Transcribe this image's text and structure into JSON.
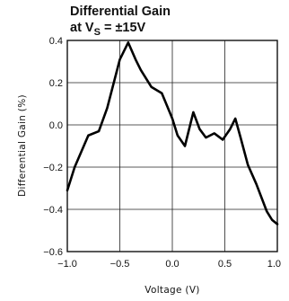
{
  "chart_data": {
    "type": "line",
    "title_line1": "Differential Gain",
    "title_line2_prefix": "at V",
    "title_line2_sub": "S",
    "title_line2_suffix": " = ±15V",
    "xlabel": "Voltage (V)",
    "ylabel": "Differential Gain (%)",
    "xlim": [
      -1.0,
      1.0
    ],
    "ylim": [
      -0.6,
      0.4
    ],
    "xticks": [
      -1.0,
      -0.5,
      0.0,
      0.5,
      1.0
    ],
    "xtick_labels": [
      "−1.0",
      "−0.5",
      "0.0",
      "0.5",
      "1.0"
    ],
    "yticks": [
      0.4,
      0.2,
      0.0,
      -0.2,
      -0.4,
      -0.6
    ],
    "ytick_labels": [
      "0.4",
      "0.2",
      "0.0",
      "−0.2",
      "−0.4",
      "−0.6"
    ],
    "grid": true,
    "series": [
      {
        "x": [
          -1.0,
          -0.93,
          -0.8,
          -0.7,
          -0.62,
          -0.5,
          -0.42,
          -0.35,
          -0.3,
          -0.2,
          -0.1,
          0.0,
          0.05,
          0.12,
          0.2,
          0.26,
          0.32,
          0.4,
          0.48,
          0.55,
          0.6,
          0.65,
          0.72,
          0.8,
          0.9,
          0.95,
          1.0
        ],
        "y": [
          -0.31,
          -0.2,
          -0.05,
          -0.03,
          0.08,
          0.31,
          0.39,
          0.31,
          0.26,
          0.18,
          0.15,
          0.03,
          -0.05,
          -0.1,
          0.06,
          -0.02,
          -0.06,
          -0.04,
          -0.07,
          -0.02,
          0.03,
          -0.06,
          -0.19,
          -0.28,
          -0.41,
          -0.45,
          -0.47
        ]
      }
    ]
  }
}
